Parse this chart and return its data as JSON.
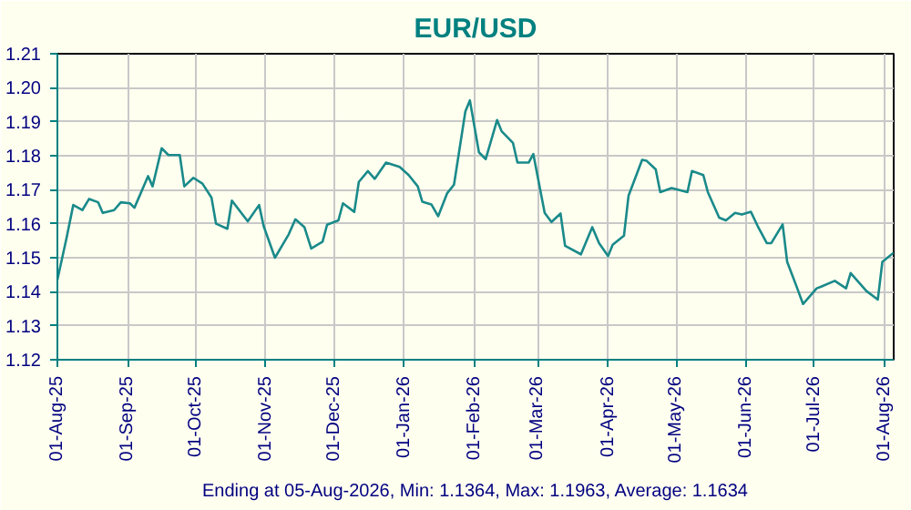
{
  "chart_data": {
    "type": "line",
    "title": "EUR/USD",
    "annotations": [
      "Ending at 05-Aug-2026, Min: 1.1364, Max: 1.1963, Average: 1.1634"
    ],
    "x": [
      "2025-08-01",
      "2025-08-05",
      "2025-08-08",
      "2025-08-12",
      "2025-08-15",
      "2025-08-19",
      "2025-08-21",
      "2025-08-26",
      "2025-08-29",
      "2025-09-02",
      "2025-09-04",
      "2025-09-10",
      "2025-09-12",
      "2025-09-16",
      "2025-09-19",
      "2025-09-24",
      "2025-09-26",
      "2025-09-30",
      "2025-10-04",
      "2025-10-08",
      "2025-10-10",
      "2025-10-15",
      "2025-10-17",
      "2025-10-24",
      "2025-10-29",
      "2025-10-31",
      "2025-11-05",
      "2025-11-11",
      "2025-11-14",
      "2025-11-18",
      "2025-11-21",
      "2025-11-26",
      "2025-11-28",
      "2025-12-03",
      "2025-12-05",
      "2025-12-10",
      "2025-12-12",
      "2025-12-16",
      "2025-12-19",
      "2025-12-24",
      "2025-12-30",
      "2026-01-03",
      "2026-01-07",
      "2026-01-09",
      "2026-01-13",
      "2026-01-16",
      "2026-01-20",
      "2026-01-23",
      "2026-01-28",
      "2026-01-30",
      "2026-02-03",
      "2026-02-06",
      "2026-02-11",
      "2026-02-13",
      "2026-02-18",
      "2026-02-20",
      "2026-02-25",
      "2026-02-27",
      "2026-03-04",
      "2026-03-07",
      "2026-03-11",
      "2026-03-13",
      "2026-03-20",
      "2026-03-25",
      "2026-03-28",
      "2026-04-01",
      "2026-04-03",
      "2026-04-08",
      "2026-04-10",
      "2026-04-16",
      "2026-04-18",
      "2026-04-22",
      "2026-04-24",
      "2026-04-29",
      "2026-05-06",
      "2026-05-08",
      "2026-05-13",
      "2026-05-15",
      "2026-05-20",
      "2026-05-23",
      "2026-05-27",
      "2026-05-30",
      "2026-06-03",
      "2026-06-06",
      "2026-06-10",
      "2026-06-12",
      "2026-06-17",
      "2026-06-19",
      "2026-06-23",
      "2026-06-26",
      "2026-07-02",
      "2026-07-04",
      "2026-07-10",
      "2026-07-15",
      "2026-07-17",
      "2026-07-24",
      "2026-07-29",
      "2026-07-31",
      "2026-08-05"
    ],
    "series": [
      {
        "color": "#1a8a8a",
        "values": [
          1.1435,
          1.1557,
          1.1655,
          1.164,
          1.1673,
          1.1663,
          1.1632,
          1.164,
          1.1663,
          1.166,
          1.1647,
          1.174,
          1.171,
          1.1822,
          1.1802,
          1.1802,
          1.171,
          1.1735,
          1.1718,
          1.1677,
          1.16,
          1.1585,
          1.1668,
          1.1607,
          1.1655,
          1.1593,
          1.15,
          1.1568,
          1.1613,
          1.159,
          1.1527,
          1.1547,
          1.1597,
          1.161,
          1.166,
          1.1635,
          1.1723,
          1.1755,
          1.1732,
          1.178,
          1.1767,
          1.1743,
          1.171,
          1.1665,
          1.1657,
          1.1622,
          1.169,
          1.1715,
          1.193,
          1.1963,
          1.181,
          1.179,
          1.1905,
          1.1872,
          1.1838,
          1.178,
          1.178,
          1.1805,
          1.1632,
          1.1605,
          1.163,
          1.1535,
          1.151,
          1.159,
          1.1543,
          1.1505,
          1.1538,
          1.1565,
          1.1682,
          1.1788,
          1.1785,
          1.176,
          1.1693,
          1.1705,
          1.1693,
          1.1755,
          1.1743,
          1.1693,
          1.1618,
          1.161,
          1.1632,
          1.1627,
          1.1635,
          1.1593,
          1.1543,
          1.1543,
          1.1598,
          1.1488,
          1.1418,
          1.1364,
          1.141,
          1.1415,
          1.1432,
          1.141,
          1.1455,
          1.1402,
          1.1377,
          1.1488,
          1.1515
        ]
      }
    ],
    "xlim": [
      "2025-08-01",
      "2026-08-05"
    ],
    "xticks": [
      {
        "value": "2025-08-01",
        "label": "01-Aug-25"
      },
      {
        "value": "2025-09-01",
        "label": "01-Sep-25"
      },
      {
        "value": "2025-10-01",
        "label": "01-Oct-25"
      },
      {
        "value": "2025-11-01",
        "label": "01-Nov-25"
      },
      {
        "value": "2025-12-01",
        "label": "01-Dec-25"
      },
      {
        "value": "2026-01-01",
        "label": "01-Jan-26"
      },
      {
        "value": "2026-02-01",
        "label": "01-Feb-26"
      },
      {
        "value": "2026-03-01",
        "label": "01-Mar-26"
      },
      {
        "value": "2026-04-01",
        "label": "01-Apr-26"
      },
      {
        "value": "2026-05-01",
        "label": "01-May-26"
      },
      {
        "value": "2026-06-01",
        "label": "01-Jun-26"
      },
      {
        "value": "2026-07-01",
        "label": "01-Jul-26"
      },
      {
        "value": "2026-08-01",
        "label": "01-Aug-26"
      }
    ],
    "ylim": [
      1.12,
      1.21
    ],
    "yticks": [
      1.12,
      1.13,
      1.14,
      1.15,
      1.16,
      1.17,
      1.18,
      1.19,
      {
        "value": 1.2,
        "label": "1.20"
      },
      1.21
    ],
    "grid": true,
    "marker": "none",
    "line_style": "solid"
  }
}
